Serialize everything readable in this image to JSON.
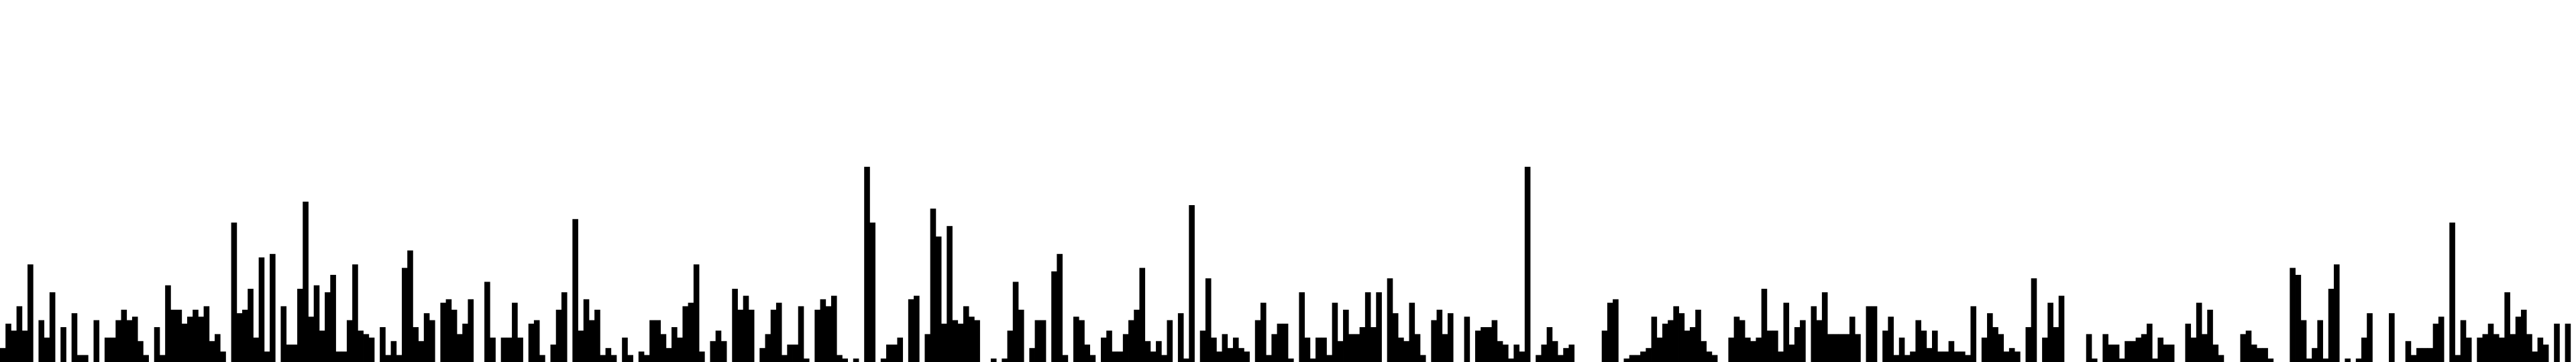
{
  "chart_data": {
    "type": "bar",
    "title": "",
    "xlabel": "",
    "ylabel": "",
    "ylim": [
      0,
      100
    ],
    "grid": false,
    "legend": "none",
    "bar_color": "#000000",
    "background": "#ffffff",
    "values": [
      4,
      11,
      9,
      16,
      9,
      28,
      0,
      12,
      7,
      20,
      0,
      10,
      0,
      14,
      2,
      2,
      0,
      12,
      0,
      7,
      7,
      12,
      15,
      12,
      13,
      6,
      2,
      0,
      10,
      2,
      22,
      15,
      15,
      11,
      13,
      15,
      13,
      16,
      6,
      8,
      3,
      0,
      40,
      14,
      15,
      21,
      7,
      30,
      3,
      31,
      0,
      16,
      5,
      5,
      21,
      46,
      13,
      22,
      9,
      20,
      25,
      3,
      3,
      12,
      28,
      9,
      8,
      7,
      0,
      10,
      2,
      6,
      2,
      27,
      32,
      10,
      6,
      14,
      12,
      0,
      17,
      18,
      15,
      8,
      11,
      18,
      0,
      0,
      23,
      7,
      0,
      7,
      7,
      17,
      7,
      0,
      11,
      12,
      2,
      0,
      5,
      15,
      20,
      0,
      41,
      9,
      18,
      12,
      15,
      2,
      4,
      2,
      0,
      7,
      2,
      0,
      3,
      2,
      12,
      12,
      8,
      4,
      10,
      7,
      16,
      17,
      28,
      3,
      0,
      6,
      9,
      6,
      0,
      21,
      15,
      19,
      15,
      0,
      4,
      8,
      15,
      17,
      2,
      5,
      5,
      16,
      1,
      0,
      15,
      18,
      16,
      19,
      2,
      1,
      0,
      1,
      0,
      56,
      40,
      0,
      1,
      5,
      5,
      7,
      0,
      18,
      19,
      0,
      8,
      44,
      36,
      11,
      39,
      12,
      11,
      16,
      13,
      12,
      0,
      0,
      1,
      0,
      1,
      9,
      23,
      15,
      0,
      4,
      12,
      12,
      0,
      26,
      31,
      2,
      0,
      13,
      12,
      5,
      2,
      0,
      7,
      9,
      3,
      3,
      8,
      12,
      15,
      27,
      6,
      3,
      6,
      2,
      12,
      0,
      14,
      1,
      45,
      0,
      9,
      24,
      7,
      3,
      8,
      4,
      7,
      4,
      3,
      0,
      12,
      17,
      2,
      8,
      11,
      11,
      1,
      0,
      20,
      7,
      1,
      7,
      7,
      2,
      17,
      6,
      15,
      8,
      8,
      10,
      20,
      10,
      20,
      0,
      24,
      14,
      7,
      6,
      17,
      8,
      2,
      0,
      12,
      15,
      8,
      14,
      0,
      0,
      13,
      0,
      9,
      10,
      10,
      12,
      6,
      5,
      1,
      5,
      3,
      56,
      0,
      2,
      5,
      10,
      6,
      2,
      4,
      5,
      0,
      0,
      0,
      0,
      0,
      9,
      17,
      18,
      0,
      1,
      2,
      2,
      3,
      4,
      13,
      7,
      11,
      12,
      16,
      14,
      9,
      10,
      15,
      6,
      3,
      2,
      0,
      0,
      7,
      13,
      12,
      7,
      6,
      7,
      21,
      9,
      9,
      3,
      17,
      5,
      10,
      12,
      0,
      16,
      12,
      20,
      8,
      8,
      8,
      8,
      13,
      8,
      0,
      16,
      16,
      0,
      9,
      13,
      2,
      7,
      2,
      3,
      12,
      9,
      4,
      9,
      3,
      3,
      6,
      3,
      3,
      2,
      16,
      0,
      7,
      14,
      10,
      8,
      3,
      4,
      3,
      0,
      10,
      24,
      0,
      7,
      17,
      10,
      19,
      0,
      0,
      0,
      0,
      8,
      1,
      0,
      8,
      5,
      5,
      1,
      6,
      6,
      7,
      8,
      11,
      1,
      7,
      5,
      5,
      0,
      0,
      11,
      7,
      17,
      8,
      15,
      5,
      2,
      0,
      0,
      0,
      8,
      9,
      5,
      4,
      4,
      1,
      0,
      0,
      0,
      27,
      25,
      12,
      1,
      4,
      12,
      1,
      21,
      28,
      0,
      1,
      0,
      1,
      7,
      14,
      0,
      0,
      0,
      14,
      0,
      0,
      6,
      2,
      4,
      4,
      4,
      11,
      13,
      0,
      40,
      2,
      12,
      7,
      0,
      7,
      8,
      11,
      8,
      7,
      20,
      8,
      13,
      15,
      8,
      3,
      7,
      5,
      0,
      11,
      0,
      11,
      0
    ]
  }
}
